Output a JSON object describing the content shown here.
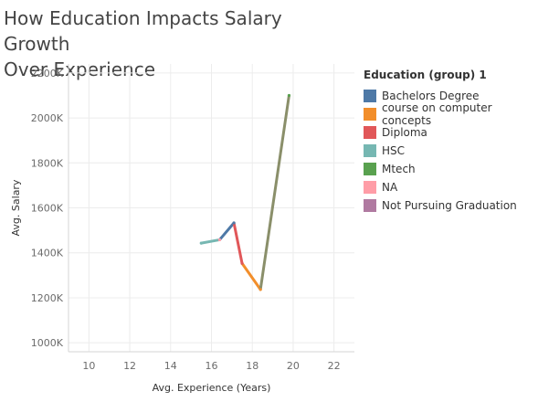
{
  "chart_data": {
    "type": "line",
    "title": "How Education Impacts Salary Growth Over Experience",
    "title_lines": [
      "How Education Impacts Salary Growth",
      "Over Experience"
    ],
    "xlabel": "Avg. Experience (Years)",
    "ylabel": "Avg. Salary",
    "xlim": [
      9,
      23
    ],
    "ylim": [
      960,
      2240
    ],
    "x_ticks": [
      10,
      12,
      14,
      16,
      18,
      20,
      22
    ],
    "y_ticks": [
      1000,
      1200,
      1400,
      1600,
      1800,
      2000,
      2200
    ],
    "y_tick_labels": [
      "1000K",
      "1200K",
      "1400K",
      "1600K",
      "1800K",
      "2000K",
      "2200K"
    ],
    "grid": true,
    "legend": {
      "title": "Education (group) 1",
      "position": "right",
      "entries": [
        {
          "name": "Bachelors Degree",
          "color": "#4e79a7"
        },
        {
          "name": "course on computer concepts",
          "color": "#f28e2b"
        },
        {
          "name": "Diploma",
          "color": "#e15759"
        },
        {
          "name": "HSC",
          "color": "#76b7b2"
        },
        {
          "name": "Mtech",
          "color": "#59a14f"
        },
        {
          "name": "NA",
          "color": "#ff9da7"
        },
        {
          "name": "Not Pursuing Graduation",
          "color": "#b07aa1"
        }
      ]
    },
    "points": [
      {
        "x": 15.5,
        "y": 1443,
        "group": "HSC"
      },
      {
        "x": 16.4,
        "y": 1458,
        "group": "NA"
      },
      {
        "x": 17.1,
        "y": 1533,
        "group": "Bachelors Degree"
      },
      {
        "x": 17.5,
        "y": 1353,
        "group": "Diploma"
      },
      {
        "x": 18.4,
        "y": 1237,
        "group": "course on computer concepts"
      },
      {
        "x": 19.8,
        "y": 2100,
        "group": "Mtech"
      }
    ],
    "segments": [
      {
        "from": 0,
        "to": 1,
        "color": "#76b7b2"
      },
      {
        "from": 1,
        "to": 2,
        "color": "#4e79a7"
      },
      {
        "from": 2,
        "to": 3,
        "color": "#e15759"
      },
      {
        "from": 3,
        "to": 4,
        "color": "#f28e2b"
      },
      {
        "from": 4,
        "to": 5,
        "color": "#8a8f6a"
      }
    ]
  }
}
